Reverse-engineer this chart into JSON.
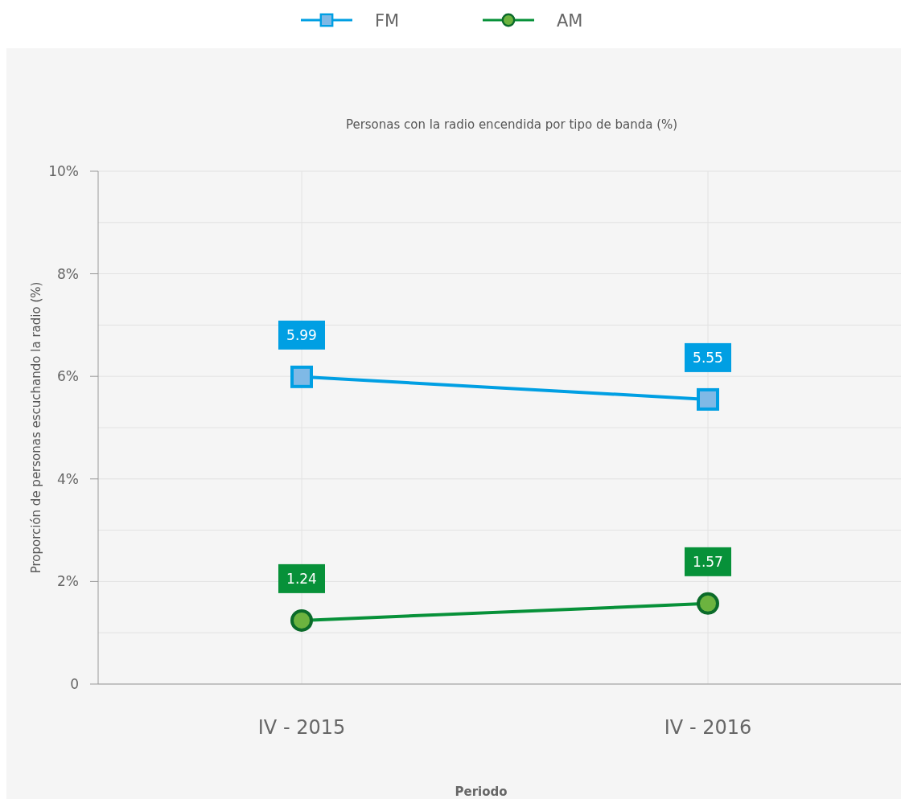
{
  "chart_data": {
    "type": "line",
    "title": "Personas con la radio encendida por tipo de banda (%)",
    "xlabel": "Periodo",
    "ylabel": "Proporción de personas escuchando la radio (%)",
    "categories": [
      "IV - 2015",
      "IV - 2016"
    ],
    "series": [
      {
        "name": "FM",
        "color": "#009fe3",
        "values": [
          5.99,
          5.55
        ],
        "marker": "square"
      },
      {
        "name": "AM",
        "color": "#079139",
        "values": [
          1.24,
          1.57
        ],
        "marker": "circle"
      }
    ],
    "ylim": [
      0,
      10
    ],
    "yticks": [
      {
        "value": 0,
        "label": "0"
      },
      {
        "value": 2,
        "label": "2%"
      },
      {
        "value": 4,
        "label": "4%"
      },
      {
        "value": 6,
        "label": "6%"
      },
      {
        "value": 8,
        "label": "8%"
      },
      {
        "value": 10,
        "label": "10%"
      }
    ],
    "grid": true,
    "legend": "top",
    "data_labels": true,
    "line_style": "solid"
  }
}
